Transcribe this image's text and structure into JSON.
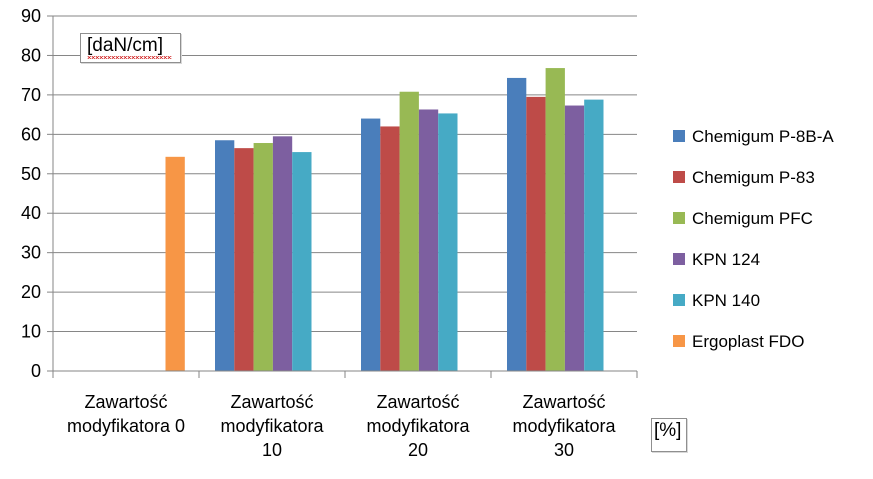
{
  "chart_data": {
    "type": "bar",
    "ylabel": "[daN/cm]",
    "xlabel": "[%]",
    "ylim": [
      0,
      90
    ],
    "ytick_step": 10,
    "yticks": [
      "0",
      "10",
      "20",
      "30",
      "40",
      "50",
      "60",
      "70",
      "80",
      "90"
    ],
    "categories": [
      [
        "Zawartość",
        "modyfikatora 0"
      ],
      [
        "Zawartość",
        "modyfikatora",
        "10"
      ],
      [
        "Zawartość",
        "modyfikatora",
        "20"
      ],
      [
        "Zawartość",
        "modyfikatora",
        "30"
      ]
    ],
    "series": [
      {
        "name": "Chemigum P-8B-A",
        "color": "#4a7ebb",
        "values": [
          null,
          58.5,
          64,
          74.3
        ]
      },
      {
        "name": "Chemigum P-83",
        "color": "#be4b48",
        "values": [
          null,
          56.5,
          62,
          69.5
        ]
      },
      {
        "name": "Chemigum PFC",
        "color": "#98b954",
        "values": [
          null,
          57.8,
          70.8,
          76.8
        ]
      },
      {
        "name": "KPN 124",
        "color": "#7d5fa0",
        "values": [
          null,
          59.5,
          66.3,
          67.3
        ]
      },
      {
        "name": "KPN 140",
        "color": "#46aac5",
        "values": [
          null,
          55.5,
          65.3,
          68.8
        ]
      },
      {
        "name": "Ergoplast FDO",
        "color": "#f79646",
        "values": [
          54.3,
          null,
          null,
          null
        ]
      }
    ],
    "legend_position": "right",
    "grid": true
  }
}
